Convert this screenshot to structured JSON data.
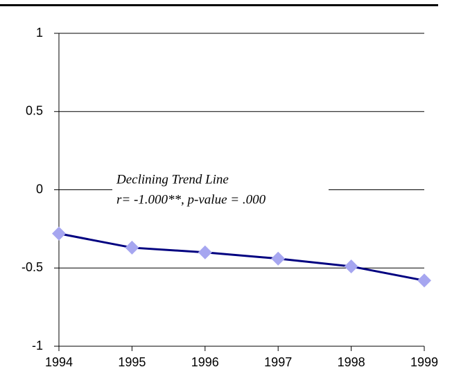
{
  "chart_data": {
    "type": "line",
    "x": [
      1994,
      1995,
      1996,
      1997,
      1998,
      1999
    ],
    "values": [
      -0.28,
      -0.37,
      -0.4,
      -0.44,
      -0.49,
      -0.58
    ],
    "color": "#000080",
    "marker_color": "#a6a6f0",
    "xlim": [
      1994,
      1999
    ],
    "xticks": [
      1994,
      1995,
      1996,
      1997,
      1998,
      1999
    ],
    "ylim": [
      -1,
      1
    ],
    "yticks": [
      -1,
      -0.5,
      0,
      0.5,
      1
    ],
    "grid": true,
    "annotation": [
      "Declining Trend Line",
      "r= -1.000**, p-value = .000"
    ]
  }
}
